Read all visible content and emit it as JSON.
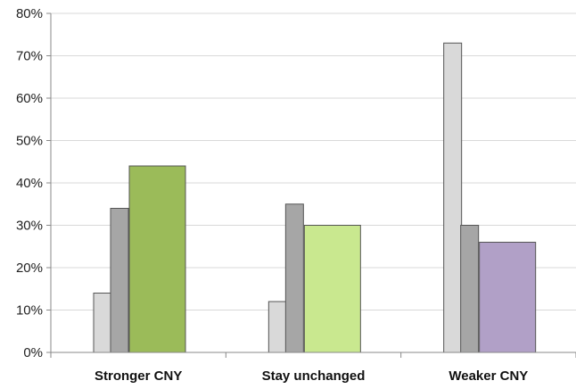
{
  "chart_data": {
    "type": "bar",
    "categories": [
      "Stronger CNY",
      "Stay unchanged",
      "Weaker CNY"
    ],
    "series": [
      {
        "values": [
          14,
          12,
          73
        ],
        "color": "#d9d9d9"
      },
      {
        "values": [
          34,
          35,
          30
        ],
        "color": "#a6a6a6"
      }
    ],
    "highlight_values": [
      44,
      30,
      26
    ],
    "highlight_colors": [
      "#9bbb59",
      "#c9e88f",
      "#b1a0c7"
    ],
    "yticks": [
      "0%",
      "10%",
      "20%",
      "30%",
      "40%",
      "50%",
      "60%",
      "70%",
      "80%"
    ],
    "ylim": [
      0,
      80
    ],
    "grid": true,
    "legend": "none"
  }
}
